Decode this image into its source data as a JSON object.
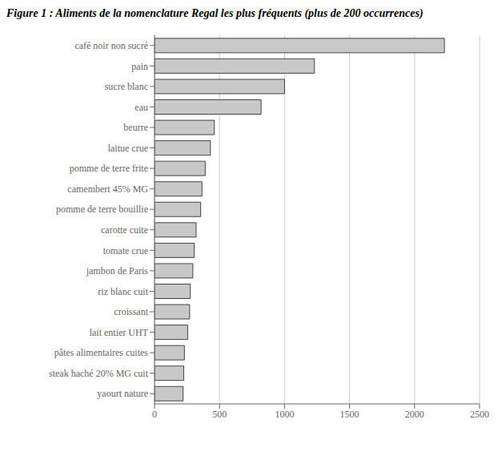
{
  "chart_data": {
    "type": "bar",
    "title": "Figure 1 : Aliments de la nomenclature Regal les plus fréquents (plus de 200 occurrences)",
    "categories": [
      "yaourt nature",
      "steak haché 20% MG cuit",
      "pâtes alimentaires cuites",
      "lait entier UHT",
      "croissant",
      "riz blanc cuit",
      "jambon de Paris",
      "tomate crue",
      "carotte cuite",
      "pomme de terre bouillie",
      "camembert 45% MG",
      "pomme de terre frite",
      "laitue crue",
      "beurre",
      "eau",
      "sucre blanc",
      "pain",
      "café noir non sucré"
    ],
    "values": [
      220,
      225,
      230,
      255,
      270,
      275,
      295,
      305,
      320,
      355,
      365,
      390,
      430,
      460,
      820,
      1000,
      1230,
      2230
    ],
    "color": "#c8c8c8",
    "orientation": "horizontal",
    "xlim": [
      0,
      2500
    ],
    "xticks": [
      0,
      500,
      1000,
      1500,
      2000,
      2500
    ],
    "grid": true
  }
}
